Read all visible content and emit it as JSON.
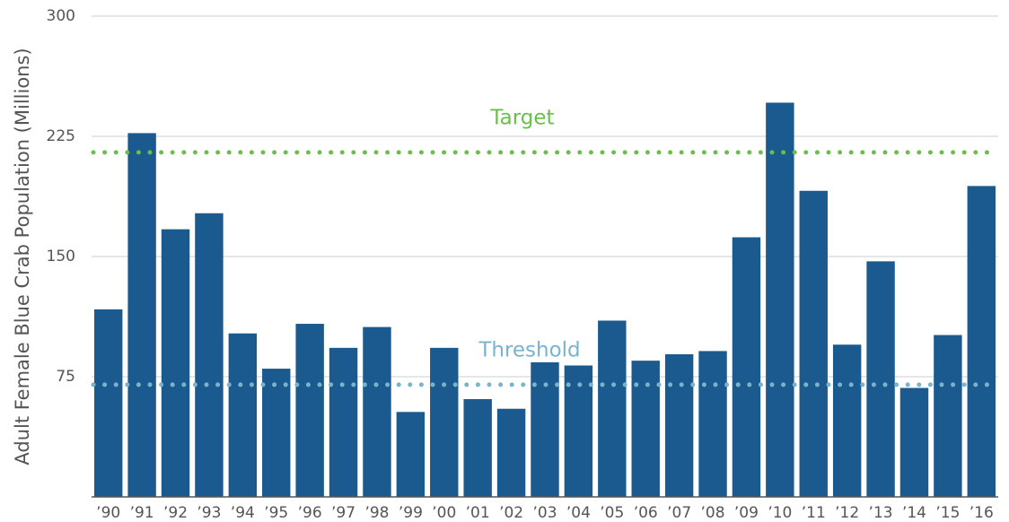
{
  "chart_data": {
    "type": "bar",
    "y_label": "Adult Female Blue Crab Population (Millions)",
    "categories": [
      "’90",
      "’91",
      "’92",
      "’93",
      "’94",
      "’95",
      "’96",
      "’97",
      "’98",
      "’99",
      "’00",
      "’01",
      "’02",
      "’03",
      "’04",
      "’05",
      "’06",
      "’07",
      "’08",
      "’09",
      "’10",
      "’11",
      "’12",
      "’13",
      "’14",
      "’15",
      "’16"
    ],
    "values": [
      117,
      227,
      167,
      177,
      102,
      80,
      108,
      93,
      106,
      53,
      93,
      61,
      55,
      84,
      82,
      110,
      85,
      89,
      91,
      162,
      246,
      191,
      95,
      147,
      68,
      101,
      194
    ],
    "color": "#1b5a8e",
    "ylim": [
      0,
      300
    ],
    "yticks": [
      75,
      150,
      225,
      300
    ],
    "grid": true,
    "reference_lines": [
      {
        "label": "Target",
        "value": 215,
        "color": "#6abf4b"
      },
      {
        "label": "Threshold",
        "value": 70,
        "color": "#7ab3cc"
      }
    ]
  }
}
